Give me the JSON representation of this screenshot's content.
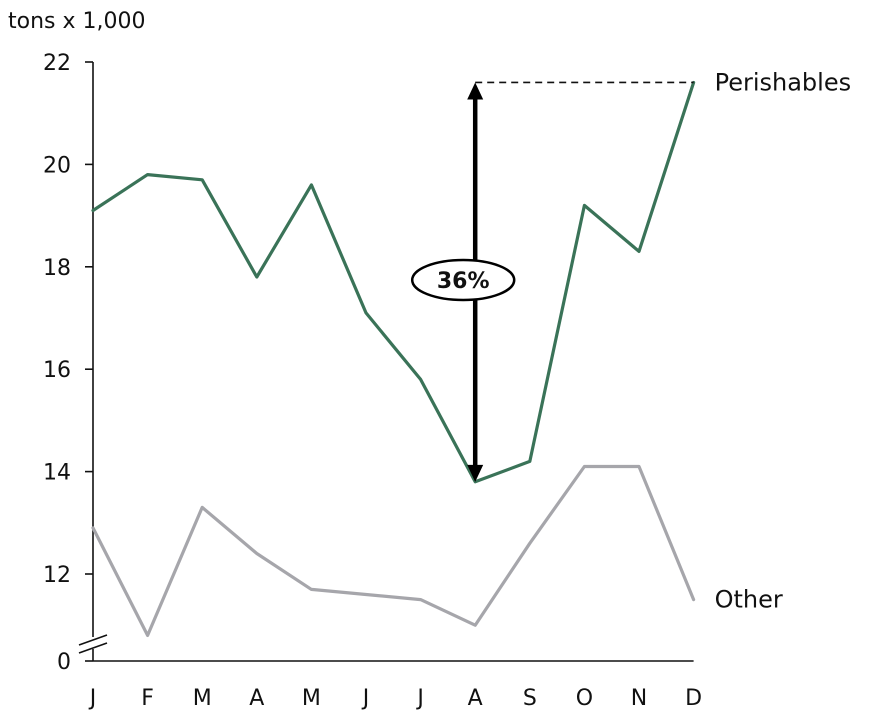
{
  "chart_data": {
    "type": "line",
    "unit_label": "tons x 1,000",
    "categories": [
      "J",
      "F",
      "M",
      "A",
      "M",
      "J",
      "J",
      "A",
      "S",
      "O",
      "N",
      "D"
    ],
    "y_ticks": [
      "0",
      "12",
      "14",
      "16",
      "18",
      "20",
      "22"
    ],
    "ylim": [
      10.5,
      22
    ],
    "axis_break": true,
    "grid": false,
    "legend": "none (series labeled at right end of lines)",
    "series": [
      {
        "name": "Perishables",
        "color": "#3a7358",
        "values": [
          19.1,
          19.8,
          19.7,
          17.8,
          19.6,
          17.1,
          15.8,
          13.8,
          14.2,
          19.2,
          18.3,
          21.6
        ]
      },
      {
        "name": "Other",
        "color": "#a6a6ab",
        "values": [
          12.9,
          10.8,
          13.3,
          12.4,
          11.7,
          11.6,
          11.5,
          11.0,
          12.6,
          14.1,
          14.1,
          11.5
        ]
      }
    ],
    "annotation": {
      "text": "36%",
      "category_index": 7,
      "from_value": 13.8,
      "to_value": 21.6,
      "reference_series": "Perishables",
      "reference_category_index": 11
    }
  }
}
